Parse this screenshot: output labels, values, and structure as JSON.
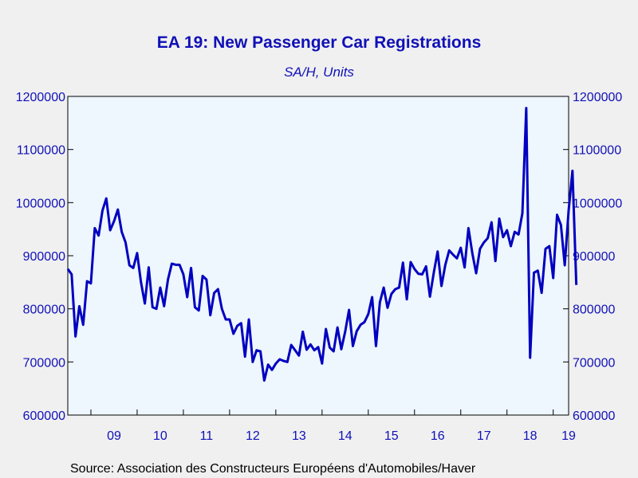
{
  "chart_data": {
    "type": "line",
    "title": "EA 19: New Passenger Car Registrations",
    "subtitle": "SA/H, Units",
    "source": "Source:  Association des Constructeurs Européens d'Automobiles/Haver",
    "x_tick_labels": [
      "09",
      "10",
      "11",
      "12",
      "13",
      "14",
      "15",
      "16",
      "17",
      "18",
      "19"
    ],
    "y_tick_labels": [
      "1200000",
      "1100000",
      "1000000",
      "900000",
      "800000",
      "700000",
      "600000"
    ],
    "ylim": [
      600000,
      1200000
    ],
    "y_ticks": [
      600000,
      700000,
      800000,
      900000,
      1000000,
      1100000,
      1200000
    ],
    "x_range": [
      "2008-07",
      "2019-05"
    ],
    "grid": false,
    "dual_y_axis": true,
    "line_color": "#0000c0",
    "plot_background": "#eef6fe",
    "series": [
      {
        "start": "2008-07",
        "frequency": "monthly",
        "values": [
          875000,
          865000,
          748000,
          805000,
          770000,
          852000,
          848000,
          952000,
          938000,
          985000,
          1008000,
          948000,
          965000,
          987000,
          945000,
          925000,
          882000,
          877000,
          905000,
          850000,
          810000,
          878000,
          803000,
          800000,
          840000,
          805000,
          855000,
          885000,
          883000,
          883000,
          865000,
          822000,
          877000,
          803000,
          797000,
          862000,
          855000,
          788000,
          830000,
          837000,
          800000,
          780000,
          780000,
          753000,
          768000,
          773000,
          710000,
          780000,
          700000,
          722000,
          720000,
          665000,
          695000,
          685000,
          697000,
          705000,
          702000,
          700000,
          732000,
          722000,
          712000,
          757000,
          723000,
          733000,
          722000,
          728000,
          697000,
          762000,
          727000,
          720000,
          765000,
          724000,
          757000,
          798000,
          730000,
          758000,
          770000,
          775000,
          790000,
          822000,
          730000,
          812000,
          840000,
          802000,
          828000,
          837000,
          840000,
          887000,
          818000,
          888000,
          875000,
          866000,
          865000,
          880000,
          823000,
          868000,
          908000,
          843000,
          883000,
          910000,
          902000,
          895000,
          915000,
          878000,
          952000,
          905000,
          867000,
          913000,
          925000,
          933000,
          963000,
          890000,
          970000,
          935000,
          948000,
          918000,
          945000,
          940000,
          980000,
          1178000,
          708000,
          868000,
          872000,
          830000,
          913000,
          918000,
          858000,
          977000,
          958000,
          882000,
          985000,
          1060000,
          845000
        ]
      }
    ]
  }
}
